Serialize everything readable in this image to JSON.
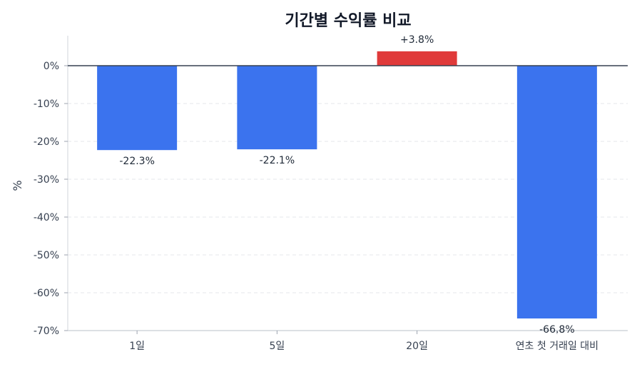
{
  "chart_data": {
    "type": "bar",
    "title": "기간별 수익률 비교",
    "xlabel": "",
    "ylabel": "%",
    "categories": [
      "1일",
      "5일",
      "20일",
      "연초 첫 거래일 대비"
    ],
    "values": [
      -22.3,
      -22.1,
      3.8,
      -66.8
    ],
    "data_labels": [
      "-22.3%",
      "-22.1%",
      "+3.8%",
      "-66.8%"
    ],
    "ylim": [
      -70,
      7
    ],
    "yticks": [
      0,
      -10,
      -20,
      -30,
      -40,
      -50,
      -60,
      -70
    ],
    "ytick_labels": [
      "0%",
      "-10%",
      "-20%",
      "-30%",
      "-40%",
      "-50%",
      "-60%",
      "-70%"
    ],
    "grid": true,
    "colors": {
      "negative": "#3b73ee",
      "positive": "#e03a3a",
      "zero_line": "#374151",
      "axis": "#d1d5db"
    }
  }
}
